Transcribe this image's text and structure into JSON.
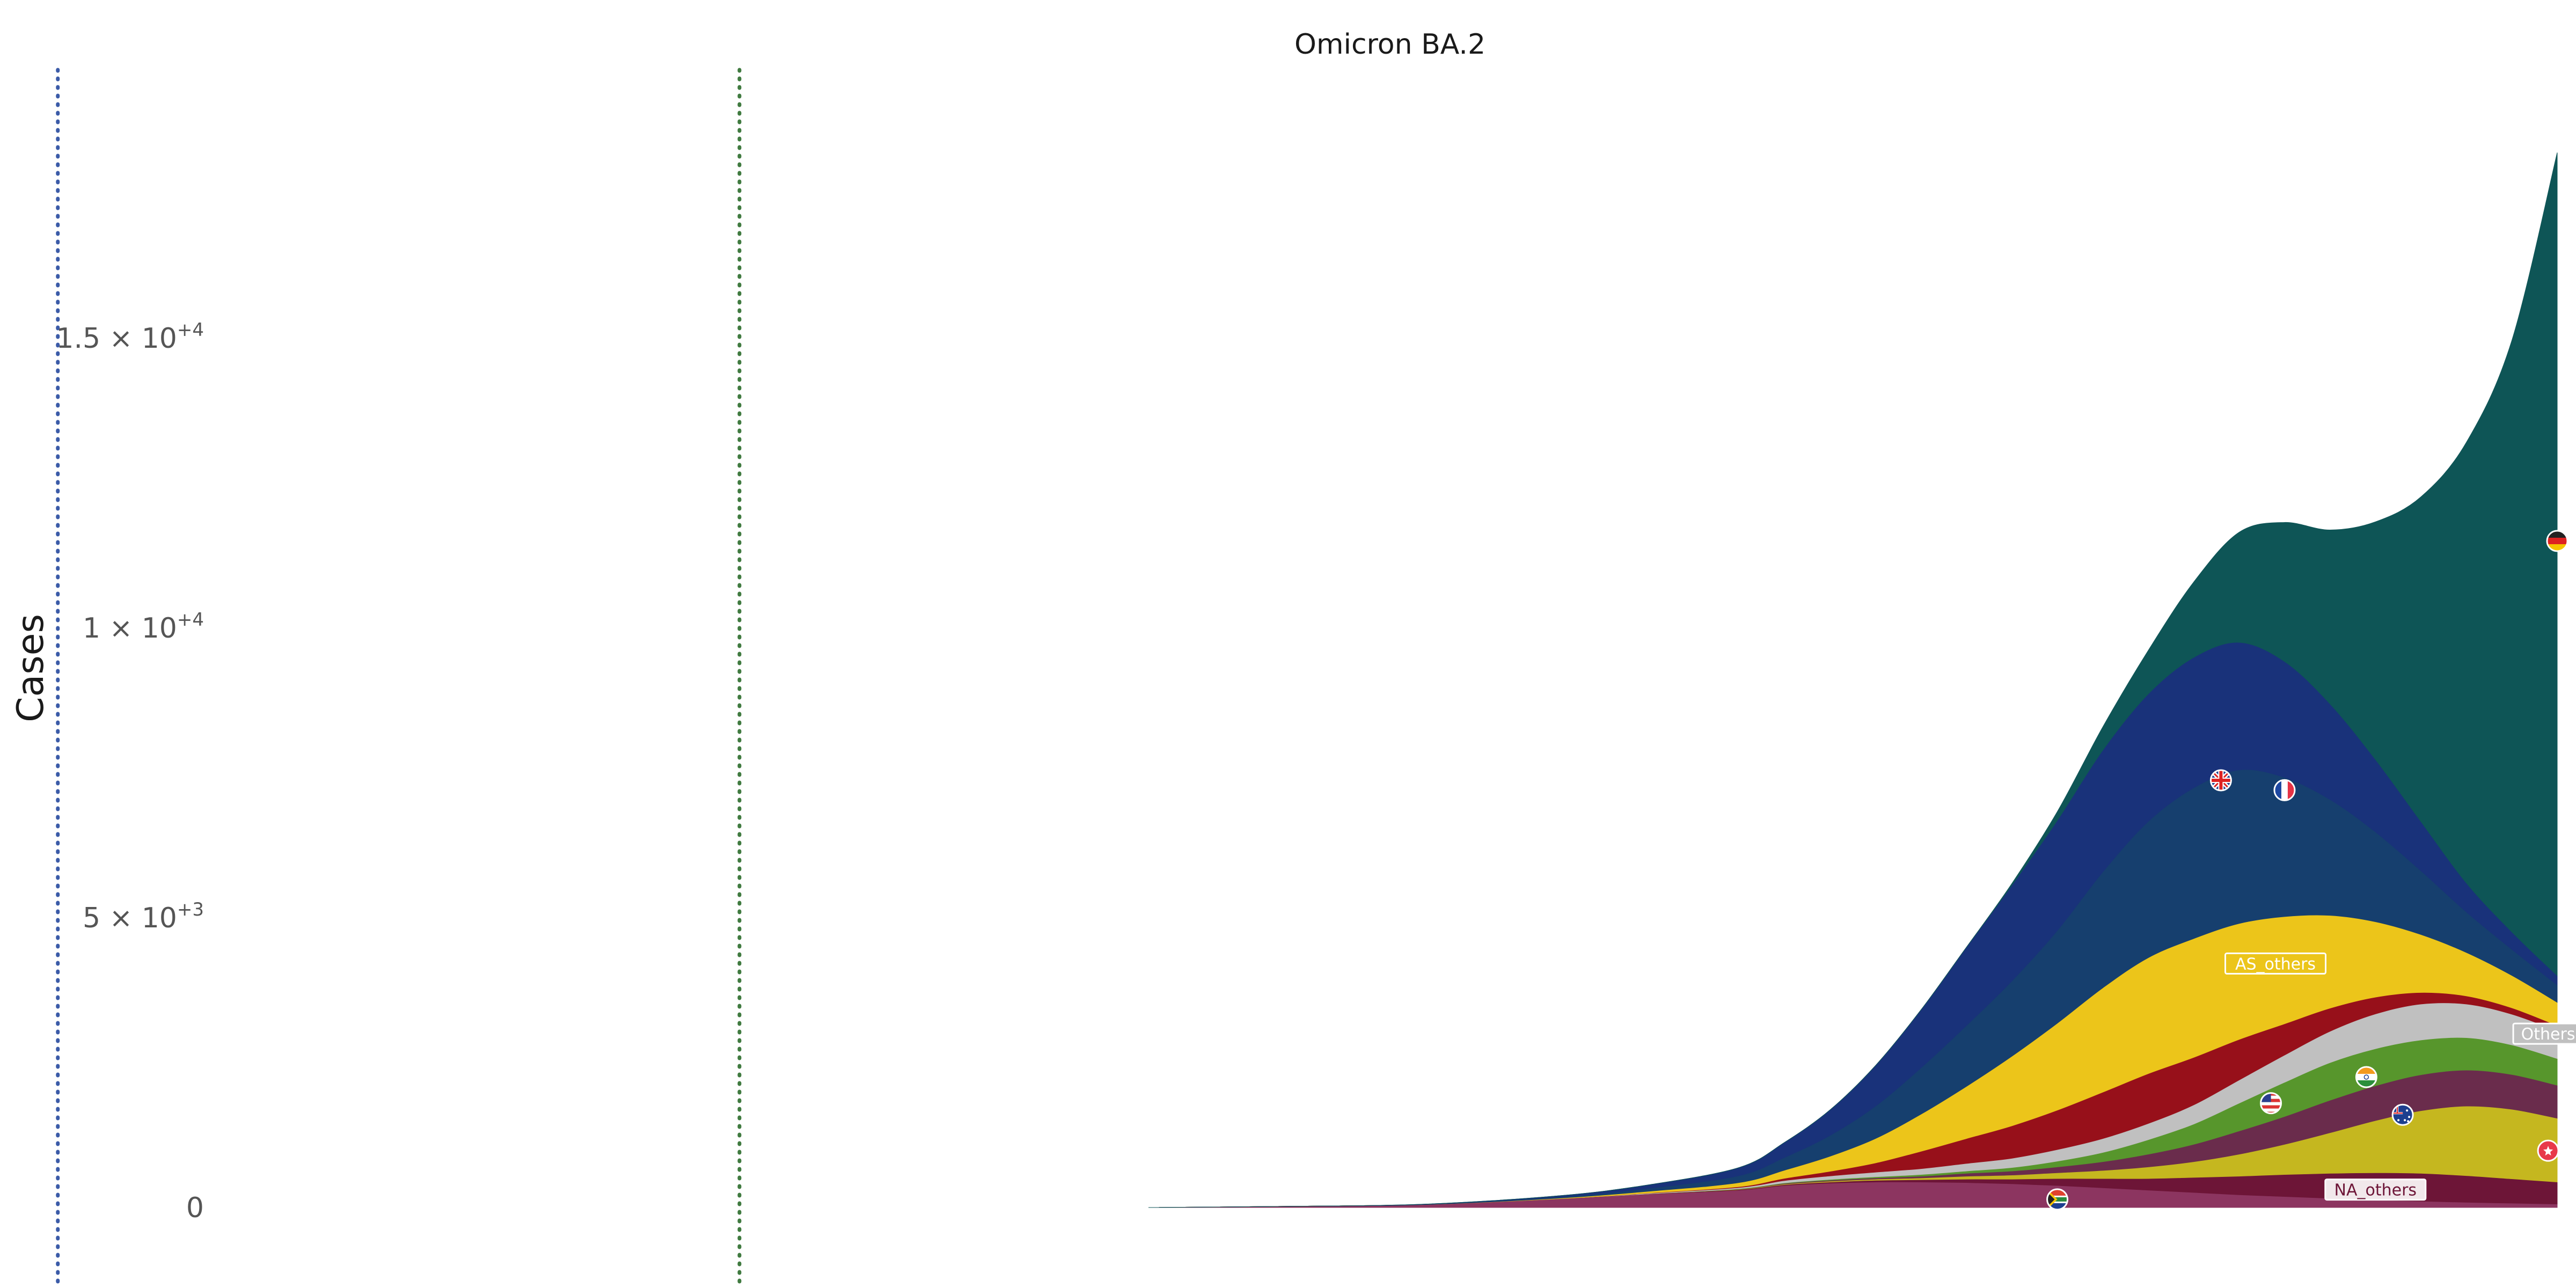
{
  "chart_data": {
    "type": "area",
    "title": "Omicron BA.2",
    "ylabel": "Cases",
    "xlabel": "",
    "stacked": true,
    "baseline": "zero",
    "ylim": [
      0,
      19500
    ],
    "yticks": [
      {
        "value": 0,
        "mantissa": "0",
        "exp": ""
      },
      {
        "value": 5000,
        "mantissa": "5 × 10",
        "exp": "+3"
      },
      {
        "value": 10000,
        "mantissa": "1 × 10",
        "exp": "+4"
      },
      {
        "value": 15000,
        "mantissa": "1.5 × 10",
        "exp": "+4"
      }
    ],
    "x": [
      0,
      30,
      60,
      90,
      110,
      130,
      140,
      150,
      160,
      170,
      180,
      190,
      200,
      210,
      220,
      230,
      240,
      250,
      260,
      270,
      280,
      290,
      300,
      310
    ],
    "markers": [
      {
        "x": -240,
        "color": "#3b5ba8",
        "style": "dotted"
      },
      {
        "x": -90,
        "color": "#3f7a3f",
        "style": "dotted"
      }
    ],
    "series": [
      {
        "label": "",
        "color": "#8c3560",
        "values": [
          0,
          20,
          50,
          150,
          230,
          300,
          380,
          420,
          440,
          440,
          430,
          410,
          380,
          340,
          300,
          260,
          220,
          190,
          160,
          130,
          110,
          90,
          75,
          60
        ]
      },
      {
        "label": "NA_others",
        "color": "#6d1537",
        "values": [
          0,
          0,
          0,
          0,
          5,
          10,
          15,
          20,
          30,
          40,
          60,
          80,
          120,
          160,
          200,
          260,
          320,
          380,
          430,
          470,
          480,
          460,
          420,
          380
        ]
      },
      {
        "label": "",
        "color": "#c5b71f",
        "values": [
          0,
          0,
          0,
          0,
          0,
          5,
          10,
          15,
          20,
          30,
          50,
          70,
          100,
          140,
          200,
          270,
          380,
          520,
          700,
          900,
          1080,
          1200,
          1200,
          1100
        ]
      },
      {
        "label": "",
        "color": "#6a2c4c",
        "values": [
          0,
          0,
          0,
          0,
          0,
          5,
          10,
          15,
          20,
          30,
          50,
          70,
          100,
          150,
          220,
          300,
          400,
          480,
          560,
          600,
          620,
          620,
          600,
          570
        ]
      },
      {
        "label": "",
        "color": "#57962c",
        "values": [
          0,
          0,
          0,
          0,
          0,
          5,
          10,
          15,
          20,
          30,
          40,
          60,
          100,
          160,
          250,
          350,
          480,
          590,
          650,
          640,
          600,
          560,
          510,
          460
        ]
      },
      {
        "label": "Others",
        "color": "#c0c0c0",
        "values": [
          0,
          0,
          0,
          0,
          10,
          20,
          40,
          60,
          80,
          100,
          130,
          160,
          200,
          240,
          280,
          330,
          400,
          470,
          540,
          600,
          620,
          580,
          530,
          480
        ]
      },
      {
        "label": "",
        "color": "#97101a",
        "values": [
          0,
          0,
          0,
          0,
          5,
          15,
          40,
          80,
          160,
          300,
          430,
          560,
          680,
          800,
          860,
          820,
          700,
          540,
          400,
          290,
          200,
          140,
          110,
          90
        ]
      },
      {
        "label": "AS_others",
        "color": "#ecc51a",
        "values": [
          0,
          0,
          0,
          10,
          30,
          70,
          140,
          260,
          420,
          640,
          900,
          1200,
          1500,
          1800,
          2000,
          2050,
          2000,
          1850,
          1600,
          1300,
          1000,
          750,
          560,
          400
        ]
      },
      {
        "label": "",
        "color": "#163f6e",
        "values": [
          0,
          0,
          0,
          20,
          50,
          120,
          220,
          360,
          560,
          800,
          1050,
          1300,
          1600,
          2000,
          2350,
          2600,
          2650,
          2400,
          2000,
          1550,
          1100,
          700,
          450,
          300
        ]
      },
      {
        "label": "",
        "color": "#19327a",
        "values": [
          0,
          0,
          5,
          20,
          60,
          140,
          260,
          440,
          700,
          1000,
          1350,
          1650,
          1900,
          2100,
          2200,
          2250,
          2200,
          2000,
          1650,
          1250,
          850,
          500,
          300,
          160
        ]
      },
      {
        "label": "",
        "color": "#0e5556",
        "values": [
          0,
          0,
          0,
          0,
          0,
          0,
          0,
          0,
          0,
          0,
          0,
          30,
          150,
          400,
          750,
          1300,
          1900,
          2400,
          3000,
          4100,
          5600,
          7600,
          10200,
          14200
        ]
      }
    ],
    "flags": [
      {
        "country": "gb",
        "x": 236,
        "y": 7370
      },
      {
        "country": "fr",
        "x": 250,
        "y": 7200
      },
      {
        "country": "de",
        "x": 310,
        "y": 11500
      },
      {
        "country": "us",
        "x": 247,
        "y": 1800
      },
      {
        "country": "in",
        "x": 268,
        "y": 2250
      },
      {
        "country": "au",
        "x": 276,
        "y": 1600
      },
      {
        "country": "hk",
        "x": 308,
        "y": 980
      },
      {
        "country": "za",
        "x": 200,
        "y": 140
      }
    ],
    "labels": [
      {
        "text": "AS_others",
        "x": 248,
        "y": 4200,
        "color": "#ecc51a"
      },
      {
        "text": "Others",
        "x": 308,
        "y": 2990,
        "color": "#c0c0c0"
      },
      {
        "text": "NA_others",
        "x": 270,
        "y": 300,
        "color": "#6d1537"
      }
    ]
  }
}
